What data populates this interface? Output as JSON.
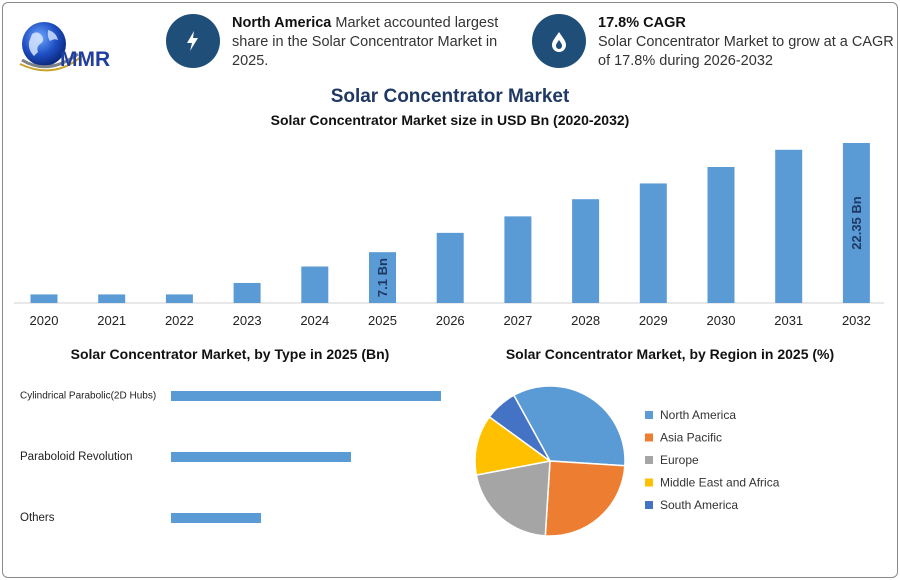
{
  "brand": {
    "logo_text": "MMR"
  },
  "callouts": [
    {
      "icon": "lightning-bolt-icon",
      "bold": "North America",
      "text": " Market accounted largest share in the Solar Concentrator Market in 2025."
    },
    {
      "icon": "flame-drop-icon",
      "bold": "17.8% CAGR",
      "text": "Solar Concentrator Market to grow at a CAGR of 17.8% during 2026-2032"
    }
  ],
  "title": "Solar Concentrator Market",
  "subtitle": "Solar Concentrator Market size in USD Bn (2020-2032)",
  "colors": {
    "bar": "#5b9bd5",
    "title": "#1f3864",
    "icon_bg": "#1f4e79"
  },
  "chart_data": [
    {
      "type": "bar",
      "title": "Solar Concentrator Market size in USD Bn (2020-2032)",
      "categories": [
        "2020",
        "2021",
        "2022",
        "2023",
        "2024",
        "2025",
        "2026",
        "2027",
        "2028",
        "2029",
        "2030",
        "2031",
        "2032"
      ],
      "values": [
        1.2,
        1.2,
        1.2,
        2.8,
        5.1,
        7.1,
        9.8,
        12.1,
        14.5,
        16.7,
        19.0,
        21.4,
        22.35
      ],
      "data_labels": [
        {
          "index": 5,
          "text": "7.1 Bn"
        },
        {
          "index": 12,
          "text": "22.35 Bn"
        }
      ],
      "ylim": [
        0,
        22.35
      ],
      "grid": false
    },
    {
      "type": "bar",
      "orientation": "horizontal",
      "title": "Solar Concentrator Market, by Type in 2025 (Bn)",
      "categories": [
        "Cylindrical Parabolic(2D Hubs)",
        "Paraboloid Revolution",
        "Others"
      ],
      "values": [
        4.5,
        3.0,
        1.5
      ],
      "xlim": [
        0,
        4.5
      ],
      "grid": false
    },
    {
      "type": "pie",
      "title": "Solar Concentrator Market, by Region in 2025 (%)",
      "legend": "right",
      "slices": [
        {
          "label": "North America",
          "value": 34,
          "color": "#5b9bd5"
        },
        {
          "label": "Asia Pacific",
          "value": 25,
          "color": "#ed7d31"
        },
        {
          "label": "Europe",
          "value": 21,
          "color": "#a5a5a5"
        },
        {
          "label": "Middle East and Africa",
          "value": 13,
          "color": "#ffc000"
        },
        {
          "label": "South America",
          "value": 7,
          "color": "#4472c4"
        }
      ]
    }
  ]
}
